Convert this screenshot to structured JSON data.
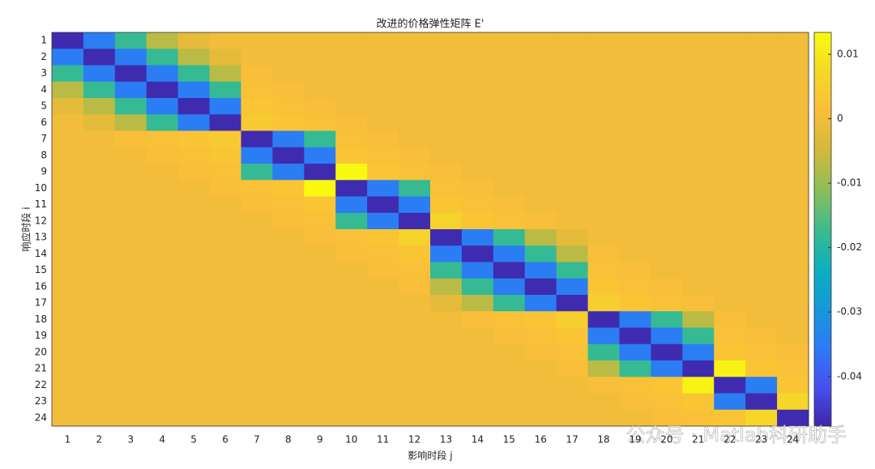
{
  "chart_data": {
    "type": "heatmap",
    "title": "改进的价格弹性矩阵 E'",
    "x_label": "影响时段 j",
    "y_label": "响应时段 i",
    "x": [
      "1",
      "2",
      "3",
      "4",
      "5",
      "6",
      "7",
      "8",
      "9",
      "10",
      "11",
      "12",
      "13",
      "14",
      "15",
      "16",
      "17",
      "18",
      "19",
      "20",
      "21",
      "22",
      "23",
      "24"
    ],
    "y": [
      "1",
      "2",
      "3",
      "4",
      "5",
      "6",
      "7",
      "8",
      "9",
      "10",
      "11",
      "12",
      "13",
      "14",
      "15",
      "16",
      "17",
      "18",
      "19",
      "20",
      "21",
      "22",
      "23",
      "24"
    ],
    "z": [
      [
        -0.047,
        -0.035,
        -0.018,
        -0.007,
        -0.002,
        0,
        0,
        0,
        0,
        0,
        0,
        0,
        0,
        0,
        0,
        0,
        0,
        0,
        0,
        0,
        0,
        0,
        0,
        0
      ],
      [
        -0.035,
        -0.047,
        -0.035,
        -0.018,
        -0.007,
        -0.002,
        0,
        0,
        0,
        0,
        0,
        0,
        0,
        0,
        0,
        0,
        0,
        0,
        0,
        0,
        0,
        0,
        0,
        0
      ],
      [
        -0.018,
        -0.035,
        -0.047,
        -0.035,
        -0.018,
        -0.007,
        0.001,
        0,
        0,
        0,
        0,
        0,
        0,
        0,
        0,
        0,
        0,
        0,
        0,
        0,
        0,
        0,
        0,
        0
      ],
      [
        -0.007,
        -0.018,
        -0.035,
        -0.047,
        -0.035,
        -0.018,
        0.002,
        0.001,
        0,
        0,
        0,
        0,
        0,
        0,
        0,
        0,
        0,
        0,
        0,
        0,
        0,
        0,
        0,
        0
      ],
      [
        -0.002,
        -0.007,
        -0.018,
        -0.035,
        -0.047,
        -0.035,
        0.003,
        0.002,
        0.001,
        0,
        0,
        0,
        0,
        0,
        0,
        0,
        0,
        0,
        0,
        0,
        0,
        0,
        0,
        0
      ],
      [
        0,
        -0.002,
        -0.007,
        -0.018,
        -0.035,
        -0.047,
        0.004,
        0.003,
        0.002,
        0.001,
        0,
        0,
        0,
        0,
        0,
        0,
        0,
        0,
        0,
        0,
        0,
        0,
        0,
        0
      ],
      [
        0,
        0,
        0.001,
        0.002,
        0.003,
        0.004,
        -0.047,
        -0.035,
        -0.018,
        0.002,
        0.001,
        0,
        0,
        0,
        0,
        0,
        0,
        0,
        0,
        0,
        0,
        0,
        0,
        0
      ],
      [
        0,
        0,
        0,
        0.001,
        0.002,
        0.003,
        -0.035,
        -0.047,
        -0.035,
        0.003,
        0.002,
        0.001,
        0,
        0,
        0,
        0,
        0,
        0,
        0,
        0,
        0,
        0,
        0,
        0
      ],
      [
        0,
        0,
        0,
        0,
        0.001,
        0.002,
        -0.018,
        -0.035,
        -0.047,
        0.013,
        0.003,
        0.002,
        0.001,
        0,
        0,
        0,
        0,
        0,
        0,
        0,
        0,
        0,
        0,
        0
      ],
      [
        0,
        0,
        0,
        0,
        0,
        0.001,
        0.002,
        0.003,
        0.013,
        -0.047,
        -0.035,
        -0.018,
        0.002,
        0.001,
        0,
        0,
        0,
        0,
        0,
        0,
        0,
        0,
        0,
        0
      ],
      [
        0,
        0,
        0,
        0,
        0,
        0,
        0.001,
        0.002,
        0.003,
        -0.035,
        -0.047,
        -0.035,
        0.003,
        0.002,
        0.001,
        0,
        0,
        0,
        0,
        0,
        0,
        0,
        0,
        0
      ],
      [
        0,
        0,
        0,
        0,
        0,
        0,
        0,
        0.001,
        0.002,
        -0.018,
        -0.035,
        -0.047,
        0.006,
        0.003,
        0.002,
        0.001,
        0,
        0,
        0,
        0,
        0,
        0,
        0,
        0
      ],
      [
        0,
        0,
        0,
        0,
        0,
        0,
        0,
        0,
        0.001,
        0.002,
        0.003,
        0.006,
        -0.047,
        -0.035,
        -0.018,
        -0.007,
        -0.002,
        0,
        0,
        0,
        0,
        0,
        0,
        0
      ],
      [
        0,
        0,
        0,
        0,
        0,
        0,
        0,
        0,
        0,
        0.001,
        0.002,
        0.003,
        -0.035,
        -0.047,
        -0.035,
        -0.018,
        -0.007,
        0.001,
        0,
        0,
        0,
        0,
        0,
        0
      ],
      [
        0,
        0,
        0,
        0,
        0,
        0,
        0,
        0,
        0,
        0,
        0.001,
        0.002,
        -0.018,
        -0.035,
        -0.047,
        -0.035,
        -0.018,
        0.002,
        0.001,
        0,
        0,
        0,
        0,
        0
      ],
      [
        0,
        0,
        0,
        0,
        0,
        0,
        0,
        0,
        0,
        0,
        0,
        0.001,
        -0.007,
        -0.018,
        -0.035,
        -0.047,
        -0.035,
        0.003,
        0.002,
        0.001,
        0,
        0,
        0,
        0
      ],
      [
        0,
        0,
        0,
        0,
        0,
        0,
        0,
        0,
        0,
        0,
        0,
        0,
        -0.002,
        -0.007,
        -0.018,
        -0.035,
        -0.047,
        0.005,
        0.003,
        0.002,
        0.001,
        0,
        0,
        0
      ],
      [
        0,
        0,
        0,
        0,
        0,
        0,
        0,
        0,
        0,
        0,
        0,
        0,
        0,
        0.001,
        0.002,
        0.003,
        0.005,
        -0.047,
        -0.035,
        -0.018,
        -0.007,
        0.001,
        0,
        0
      ],
      [
        0,
        0,
        0,
        0,
        0,
        0,
        0,
        0,
        0,
        0,
        0,
        0,
        0,
        0,
        0.001,
        0.002,
        0.003,
        -0.035,
        -0.047,
        -0.035,
        -0.018,
        0.002,
        0.001,
        0
      ],
      [
        0,
        0,
        0,
        0,
        0,
        0,
        0,
        0,
        0,
        0,
        0,
        0,
        0,
        0,
        0,
        0.001,
        0.002,
        -0.018,
        -0.035,
        -0.047,
        -0.035,
        0.003,
        0.002,
        0.001
      ],
      [
        0,
        0,
        0,
        0,
        0,
        0,
        0,
        0,
        0,
        0,
        0,
        0,
        0,
        0,
        0,
        0,
        0.001,
        -0.007,
        -0.018,
        -0.035,
        -0.047,
        0.012,
        0.003,
        0.002
      ],
      [
        0,
        0,
        0,
        0,
        0,
        0,
        0,
        0,
        0,
        0,
        0,
        0,
        0,
        0,
        0,
        0,
        0,
        0.001,
        0.002,
        0.003,
        0.012,
        -0.047,
        -0.035,
        0.003
      ],
      [
        0,
        0,
        0,
        0,
        0,
        0,
        0,
        0,
        0,
        0,
        0,
        0,
        0,
        0,
        0,
        0,
        0,
        0,
        0.001,
        0.002,
        0.003,
        -0.035,
        -0.047,
        0.007
      ],
      [
        0,
        0,
        0,
        0,
        0,
        0,
        0,
        0,
        0,
        0,
        0,
        0,
        0,
        0,
        0,
        0,
        0,
        0,
        0,
        0.001,
        0.002,
        0.003,
        0.007,
        -0.047
      ]
    ],
    "colormap": "parula",
    "clim": [
      -0.0477,
      0.0134
    ],
    "cticks": [
      0.01,
      0,
      -0.01,
      -0.02,
      -0.03,
      -0.04
    ],
    "watermark": "公众号 · Matlab科研助手"
  }
}
